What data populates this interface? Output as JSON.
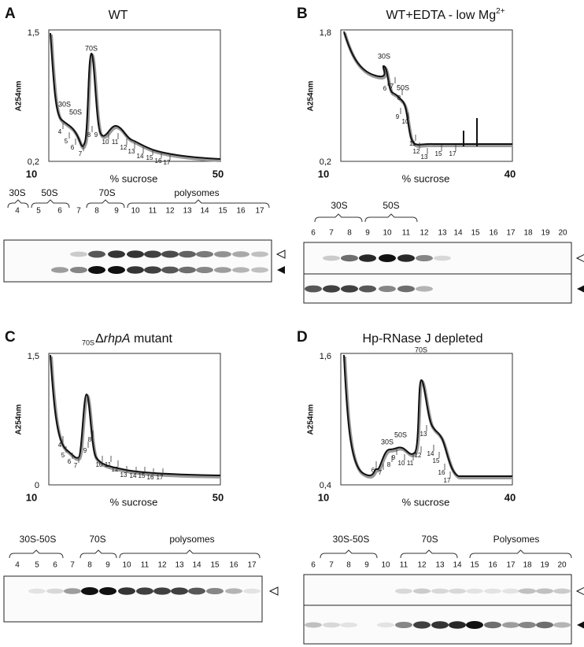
{
  "panels": [
    {
      "letter": "A",
      "title": [
        "WT"
      ],
      "y_label": "A254nm",
      "y_top": "1,5",
      "y_bottom": "0,2",
      "x_left": "10",
      "x_right": "50",
      "x_label": "% sucrose",
      "peaks": [
        "30S",
        "50S",
        "70S"
      ],
      "fractions": [
        "4",
        "5",
        "6",
        "7",
        "8",
        "9",
        "10",
        "11",
        "12",
        "13",
        "14",
        "15",
        "16",
        "17"
      ],
      "blot_groups": [
        "30S",
        "50S",
        "70S",
        "polysomes"
      ],
      "blot_fractions": [
        "4",
        "5",
        "6",
        "7",
        "8",
        "9",
        "10",
        "11",
        "12",
        "13",
        "14",
        "15",
        "16",
        "17"
      ]
    },
    {
      "letter": "B",
      "title": [
        "WT+EDTA - low Mg",
        "2+"
      ],
      "y_label": "A254nm",
      "y_top": "1,8",
      "y_bottom": "0,2",
      "x_left": "10",
      "x_right": "40",
      "x_label": "% sucrose",
      "peaks": [
        "30S",
        "50S"
      ],
      "fractions": [
        "6",
        "7",
        "8",
        "9",
        "10",
        "11",
        "12",
        "13",
        "15",
        "17"
      ],
      "blot_groups": [
        "30S",
        "50S"
      ],
      "blot_fractions": [
        "6",
        "7",
        "8",
        "9",
        "10",
        "11",
        "12",
        "13",
        "14",
        "15",
        "16",
        "17",
        "18",
        "19",
        "20"
      ]
    },
    {
      "letter": "C",
      "title": [
        "Δ",
        "rhpA",
        " mutant"
      ],
      "y_label": "A254nm",
      "y_top": "1,5",
      "y_bottom": "0",
      "x_left": "10",
      "x_right": "50",
      "x_label": "% sucrose",
      "peaks": [
        "70S"
      ],
      "fractions": [
        "4",
        "5",
        "6",
        "7",
        "8",
        "9",
        "10",
        "11",
        "12",
        "13",
        "14",
        "15",
        "16",
        "17"
      ],
      "blot_groups": [
        "30S-50S",
        "70S",
        "polysomes"
      ],
      "blot_fractions": [
        "4",
        "5",
        "6",
        "7",
        "8",
        "9",
        "10",
        "11",
        "12",
        "13",
        "14",
        "15",
        "16",
        "17"
      ]
    },
    {
      "letter": "D",
      "title": [
        "Hp-RNase J depleted"
      ],
      "y_label": "A254nm",
      "y_top": "1,6",
      "y_bottom": "0,4",
      "x_left": "10",
      "x_right": "40",
      "x_label": "% sucrose",
      "peaks": [
        "30S",
        "50S",
        "70S"
      ],
      "fractions": [
        "6",
        "7",
        "8",
        "9",
        "10",
        "11",
        "12",
        "13",
        "14",
        "15",
        "16",
        "17"
      ],
      "blot_groups": [
        "30S-50S",
        "70S",
        "Polysomes"
      ],
      "blot_fractions": [
        "6",
        "7",
        "8",
        "9",
        "10",
        "11",
        "12",
        "13",
        "14",
        "15",
        "16",
        "17",
        "18",
        "19",
        "20"
      ]
    }
  ]
}
